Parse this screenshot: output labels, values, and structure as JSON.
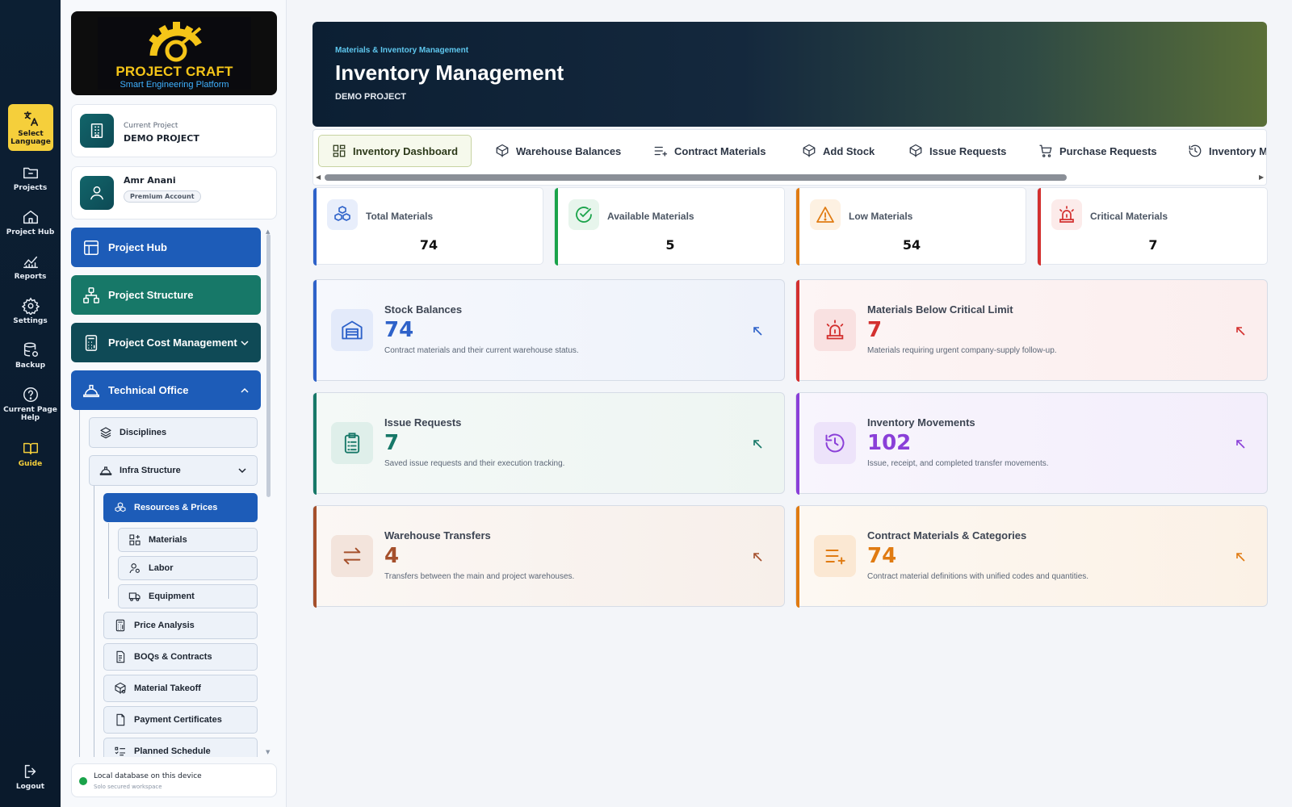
{
  "rail": {
    "select_language": "Select Language",
    "projects": "Projects",
    "project_hub": "Project Hub",
    "reports": "Reports",
    "settings": "Settings",
    "backup": "Backup",
    "help": "Current Page Help",
    "guide": "Guide",
    "logout": "Logout"
  },
  "brand": {
    "title": "PROJECT CRAFT",
    "subtitle": "Smart Engineering Platform"
  },
  "current_project": {
    "label": "Current Project",
    "name": "DEMO PROJECT"
  },
  "user": {
    "name": "Amr Anani",
    "plan": "Premium Account"
  },
  "nav": {
    "project_hub": "Project Hub",
    "project_structure": "Project Structure",
    "project_cost": "Project Cost Management",
    "technical_office": "Technical Office",
    "disciplines": "Disciplines",
    "infra_structure": "Infra Structure",
    "resources_prices": "Resources & Prices",
    "materials": "Materials",
    "labor": "Labor",
    "equipment": "Equipment",
    "price_analysis": "Price Analysis",
    "boqs_contracts": "BOQs & Contracts",
    "material_takeoff": "Material Takeoff",
    "payment_certificates": "Payment Certificates",
    "planned_schedule": "Planned Schedule"
  },
  "db_status": {
    "main": "Local database on this device",
    "sub": "Solo secured workspace",
    "color": "#1aa34a"
  },
  "hero": {
    "kicker": "Materials & Inventory Management",
    "title": "Inventory Management",
    "subtitle": "DEMO PROJECT"
  },
  "tabs": {
    "dashboard": "Inventory Dashboard",
    "warehouse": "Warehouse Balances",
    "contract": "Contract Materials",
    "add_stock": "Add Stock",
    "issue": "Issue Requests",
    "purchase": "Purchase Requests",
    "movements": "Inventory Movements"
  },
  "stats": {
    "total": {
      "label": "Total Materials",
      "value": "74",
      "color": "#2e62c9"
    },
    "available": {
      "label": "Available Materials",
      "value": "5",
      "color": "#1aa34a"
    },
    "low": {
      "label": "Low Materials",
      "value": "54",
      "color": "#e07b12"
    },
    "critical": {
      "label": "Critical Materials",
      "value": "7",
      "color": "#d3302f"
    }
  },
  "cards": {
    "stock": {
      "title": "Stock Balances",
      "value": "74",
      "desc": "Contract materials and their current warehouse status.",
      "color": "#2e62c9"
    },
    "below_critical": {
      "title": "Materials Below Critical Limit",
      "value": "7",
      "desc": "Materials requiring urgent company-supply follow-up.",
      "color": "#d3302f"
    },
    "issue": {
      "title": "Issue Requests",
      "value": "7",
      "desc": "Saved issue requests and their execution tracking.",
      "color": "#177868"
    },
    "movements": {
      "title": "Inventory Movements",
      "value": "102",
      "desc": "Issue, receipt, and completed transfer movements.",
      "color": "#8a3fd8"
    },
    "transfers": {
      "title": "Warehouse Transfers",
      "value": "4",
      "desc": "Transfers between the main and project warehouses.",
      "color": "#a5502c"
    },
    "contract": {
      "title": "Contract Materials & Categories",
      "value": "74",
      "desc": "Contract material definitions with unified codes and quantities.",
      "color": "#e07b12"
    }
  }
}
